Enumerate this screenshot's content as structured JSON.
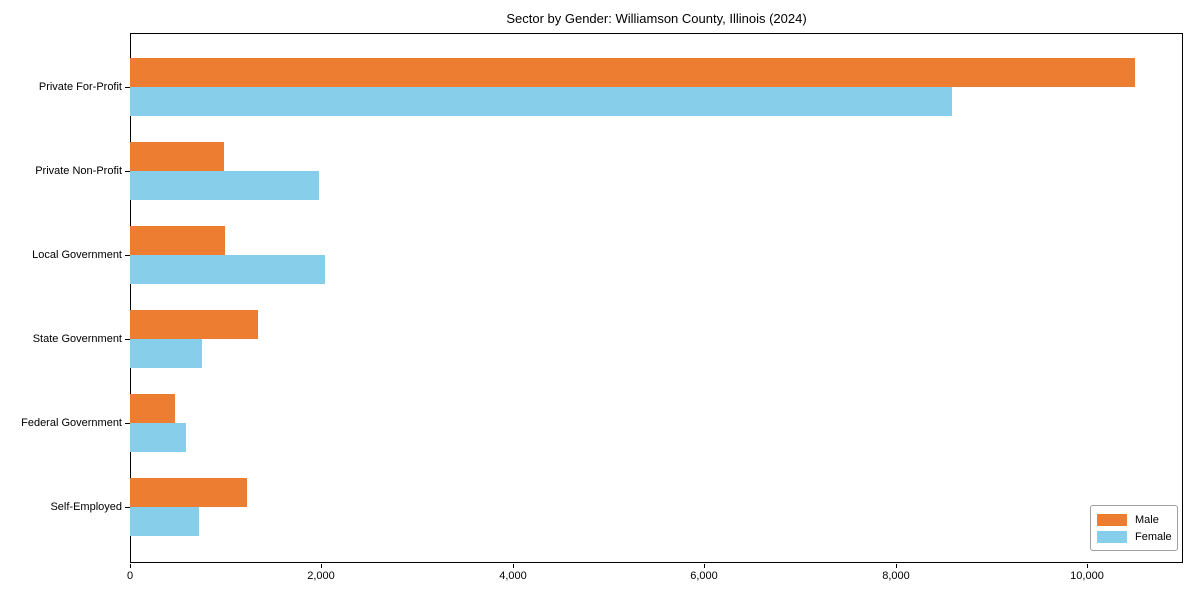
{
  "title": "Sector by Gender: Williamson County, Illinois (2024)",
  "chart_data": {
    "type": "bar",
    "orientation": "horizontal",
    "title": "Sector by Gender: Williamson County, Illinois (2024)",
    "categories": [
      "Private For-Profit",
      "Private Non-Profit",
      "Local Government",
      "State Government",
      "Federal Government",
      "Self-Employed"
    ],
    "series": [
      {
        "name": "Male",
        "color": "#ED7D31",
        "values": [
          10500,
          980,
          990,
          1340,
          470,
          1220
        ]
      },
      {
        "name": "Female",
        "color": "#87CEEB",
        "values": [
          8590,
          1970,
          2040,
          750,
          585,
          720
        ]
      }
    ],
    "xlabel": "",
    "ylabel": "",
    "xlim": [
      0,
      11000
    ],
    "x_ticks": [
      0,
      2000,
      4000,
      6000,
      8000,
      10000
    ],
    "x_tick_labels": [
      "0",
      "2,000",
      "4,000",
      "6,000",
      "8,000",
      "10,000"
    ],
    "grid": false,
    "legend_position": "lower right"
  }
}
